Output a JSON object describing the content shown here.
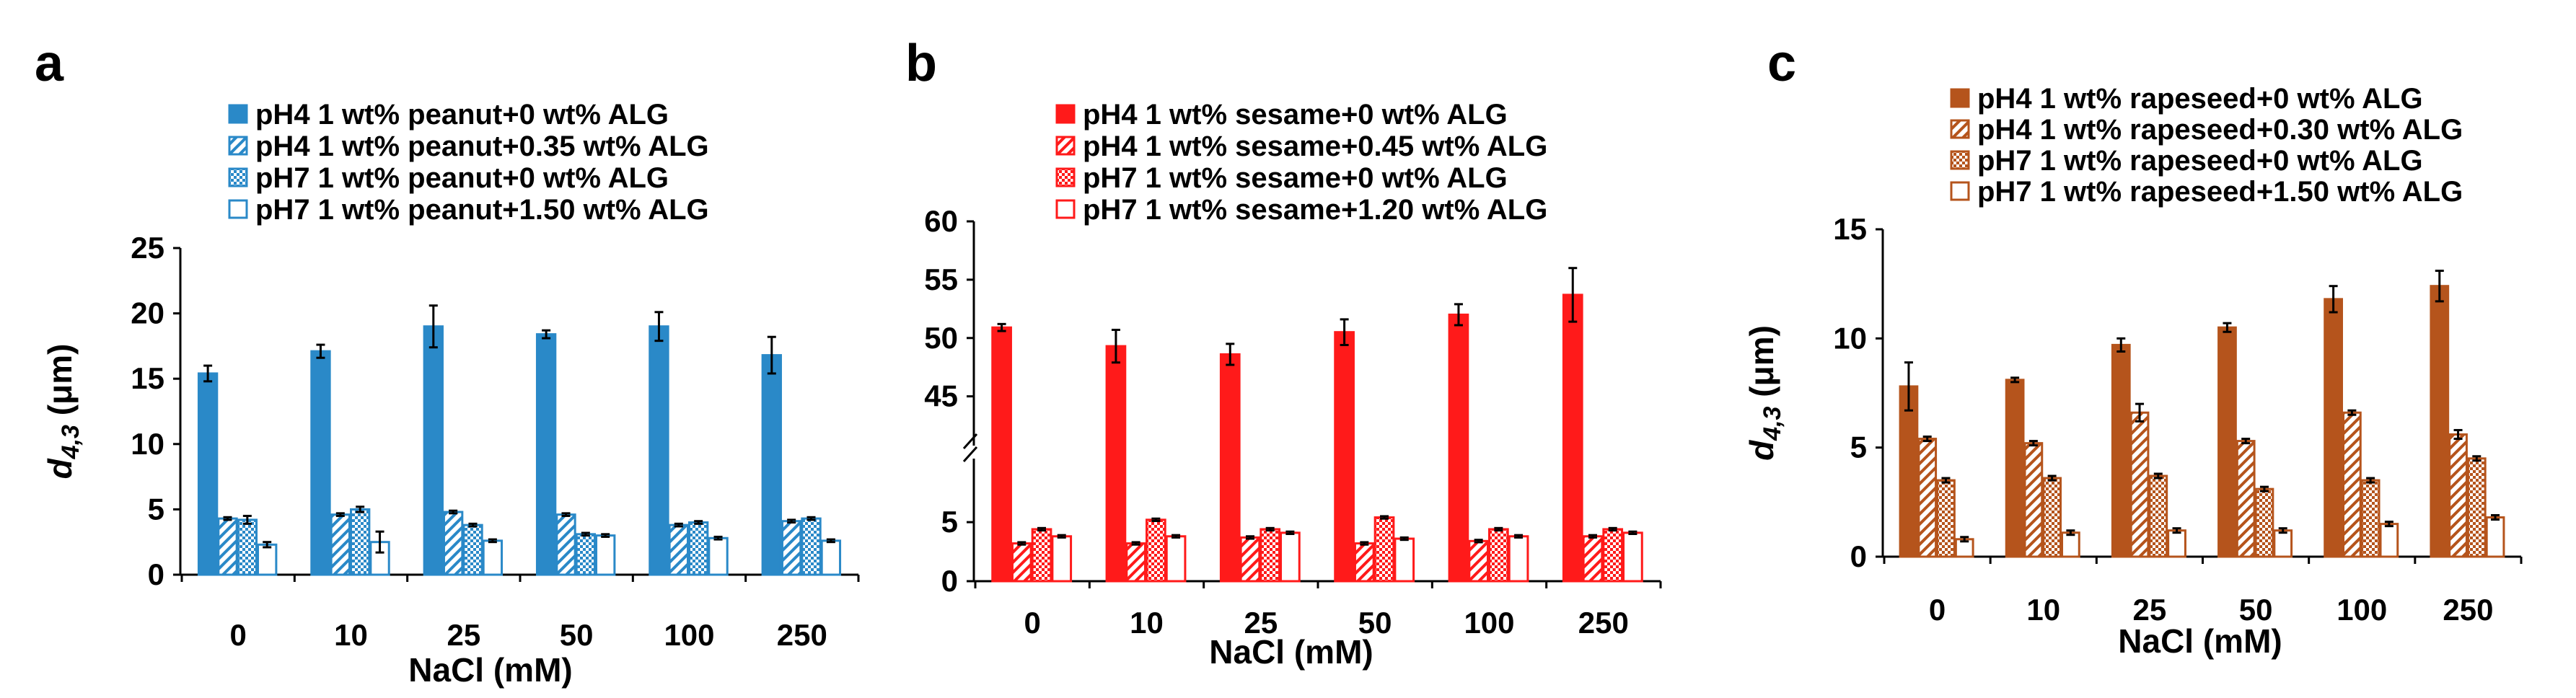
{
  "chart_data": [
    {
      "panel": "a",
      "type": "bar",
      "break": false,
      "color": "#2a89c8",
      "categories": [
        "0",
        "10",
        "25",
        "50",
        "100",
        "250"
      ],
      "xlabel": "NaCl (mM)",
      "ylabel": "d4,3 (μm)",
      "ylabel_parts": [
        "d",
        "4,3",
        " (μm)"
      ],
      "ylim": [
        0,
        25
      ],
      "yticks": [
        "0",
        "5",
        "10",
        "15",
        "20",
        "25"
      ],
      "series": [
        {
          "name": "pH4 1 wt% peanut+0 wt% ALG",
          "style": "solid",
          "values": [
            15.4,
            17.1,
            19.0,
            18.4,
            19.0,
            16.8
          ],
          "errors": [
            0.6,
            0.5,
            1.6,
            0.3,
            1.1,
            1.4
          ]
        },
        {
          "name": "pH4 1 wt% peanut+0.35 wt% ALG",
          "style": "diag",
          "values": [
            4.3,
            4.6,
            4.8,
            4.6,
            3.8,
            4.1
          ],
          "errors": [
            0.1,
            0.1,
            0.1,
            0.1,
            0.1,
            0.1
          ]
        },
        {
          "name": "pH7 1 wt% peanut+0 wt% ALG",
          "style": "check",
          "values": [
            4.2,
            5.0,
            3.8,
            3.1,
            4.0,
            4.3
          ],
          "errors": [
            0.3,
            0.2,
            0.1,
            0.1,
            0.1,
            0.1
          ]
        },
        {
          "name": "pH7 1 wt% peanut+1.50 wt% ALG",
          "style": "open",
          "values": [
            2.3,
            2.5,
            2.6,
            3.0,
            2.8,
            2.6
          ],
          "errors": [
            0.2,
            0.8,
            0.1,
            0.1,
            0.1,
            0.1
          ]
        }
      ]
    },
    {
      "panel": "b",
      "type": "bar",
      "break": true,
      "color": "#ff1a1a",
      "categories": [
        "0",
        "10",
        "25",
        "50",
        "100",
        "250"
      ],
      "xlabel": "NaCl (mM)",
      "ylabel": "",
      "ylim_lower": [
        0,
        8
      ],
      "ylim_upper": [
        43,
        60
      ],
      "yticks_lower": [
        "0",
        "5"
      ],
      "yticks_upper": [
        "45",
        "50",
        "55",
        "60"
      ],
      "series": [
        {
          "name": "pH4 1 wt% sesame+0 wt% ALG",
          "style": "solid",
          "values": [
            50.9,
            49.3,
            48.6,
            50.5,
            52.0,
            53.7
          ],
          "errors": [
            0.3,
            1.4,
            0.9,
            1.1,
            0.9,
            2.3
          ]
        },
        {
          "name": "pH4 1 wt% sesame+0.45 wt% ALG",
          "style": "diag",
          "values": [
            3.2,
            3.2,
            3.7,
            3.2,
            3.4,
            3.8
          ],
          "errors": [
            0.1,
            0.1,
            0.1,
            0.1,
            0.1,
            0.1
          ]
        },
        {
          "name": "pH7 1 wt% sesame+0 wt% ALG",
          "style": "check",
          "values": [
            4.4,
            5.2,
            4.4,
            5.4,
            4.4,
            4.4
          ],
          "errors": [
            0.1,
            0.1,
            0.1,
            0.1,
            0.1,
            0.1
          ]
        },
        {
          "name": "pH7 1 wt% sesame+1.20 wt% ALG",
          "style": "open",
          "values": [
            3.8,
            3.8,
            4.1,
            3.6,
            3.8,
            4.1
          ],
          "errors": [
            0.1,
            0.1,
            0.1,
            0.1,
            0.1,
            0.1
          ]
        }
      ]
    },
    {
      "panel": "c",
      "type": "bar",
      "break": false,
      "color": "#b5541c",
      "categories": [
        "0",
        "10",
        "25",
        "50",
        "100",
        "250"
      ],
      "xlabel": "NaCl (mM)",
      "ylabel": "d4,3 (μm)",
      "ylabel_parts": [
        "d",
        "4,3",
        " (μm)"
      ],
      "ylim": [
        0,
        15
      ],
      "yticks": [
        "0",
        "5",
        "10",
        "15"
      ],
      "series": [
        {
          "name": "pH4 1 wt% rapeseed+0 wt% ALG",
          "style": "solid",
          "values": [
            7.8,
            8.1,
            9.7,
            10.5,
            11.8,
            12.4
          ],
          "errors": [
            1.1,
            0.1,
            0.3,
            0.2,
            0.6,
            0.7
          ]
        },
        {
          "name": "pH4 1 wt% rapeseed+0.30 wt% ALG",
          "style": "diag",
          "values": [
            5.4,
            5.2,
            6.6,
            5.3,
            6.6,
            5.6
          ],
          "errors": [
            0.1,
            0.1,
            0.4,
            0.1,
            0.1,
            0.2
          ]
        },
        {
          "name": "pH7 1 wt% rapeseed+0 wt% ALG",
          "style": "check",
          "values": [
            3.5,
            3.6,
            3.7,
            3.1,
            3.5,
            4.5
          ],
          "errors": [
            0.1,
            0.1,
            0.1,
            0.1,
            0.1,
            0.1
          ]
        },
        {
          "name": "pH7 1 wt% rapeseed+1.50 wt% ALG",
          "style": "open",
          "values": [
            0.8,
            1.1,
            1.2,
            1.2,
            1.5,
            1.8
          ],
          "errors": [
            0.1,
            0.1,
            0.1,
            0.1,
            0.1,
            0.1
          ]
        }
      ]
    }
  ]
}
